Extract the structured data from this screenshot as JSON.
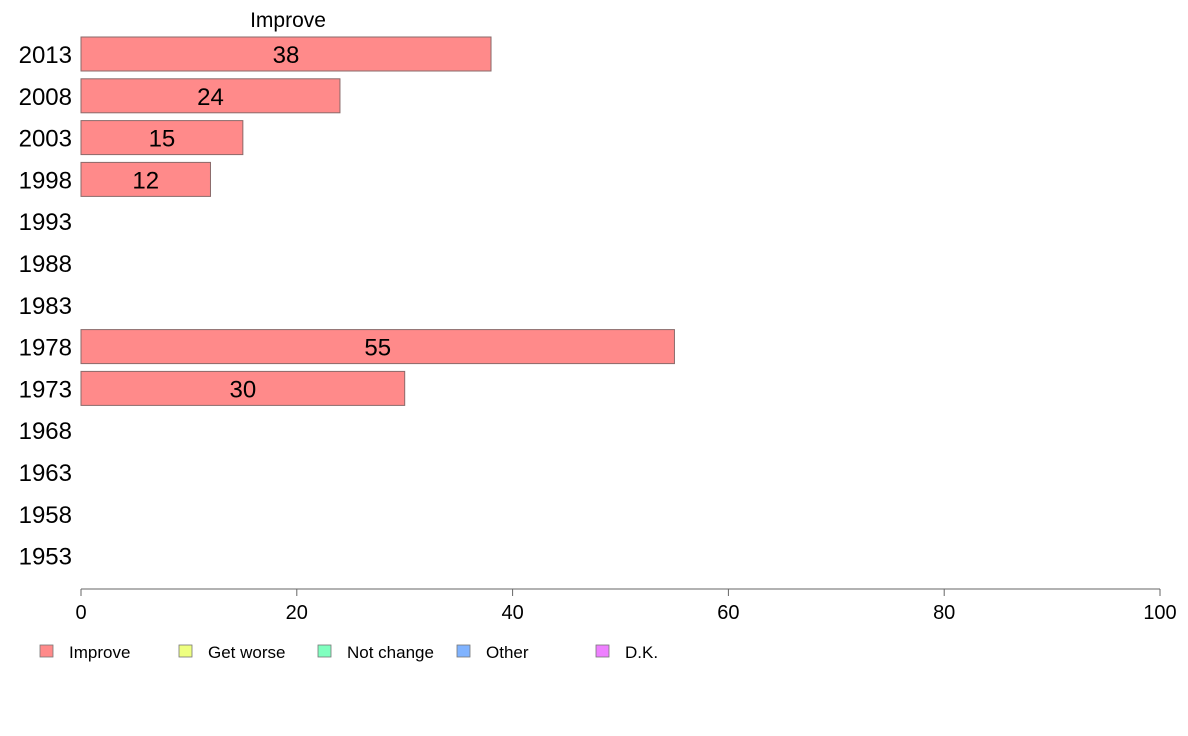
{
  "chart_data": {
    "type": "bar",
    "orientation": "horizontal",
    "title": "Improve",
    "categories": [
      "2013",
      "2008",
      "2003",
      "1998",
      "1993",
      "1988",
      "1983",
      "1978",
      "1973",
      "1968",
      "1963",
      "1958",
      "1953"
    ],
    "series": [
      {
        "name": "Improve",
        "color": "#ff8a8a",
        "values": [
          38,
          24,
          15,
          12,
          null,
          null,
          null,
          55,
          30,
          null,
          null,
          null,
          null
        ]
      }
    ],
    "xlim": [
      0,
      100
    ],
    "xticks": [
      0,
      20,
      40,
      60,
      80,
      100
    ],
    "grid": false,
    "legend": {
      "placement": "bottom",
      "entries": [
        {
          "label": "Improve",
          "color": "#ff8a8a"
        },
        {
          "label": "Get worse",
          "color": "#eeff80"
        },
        {
          "label": "Not change",
          "color": "#80ffbf"
        },
        {
          "label": "Other",
          "color": "#80b3ff"
        },
        {
          "label": "D.K.",
          "color": "#ee80ff"
        }
      ]
    }
  }
}
